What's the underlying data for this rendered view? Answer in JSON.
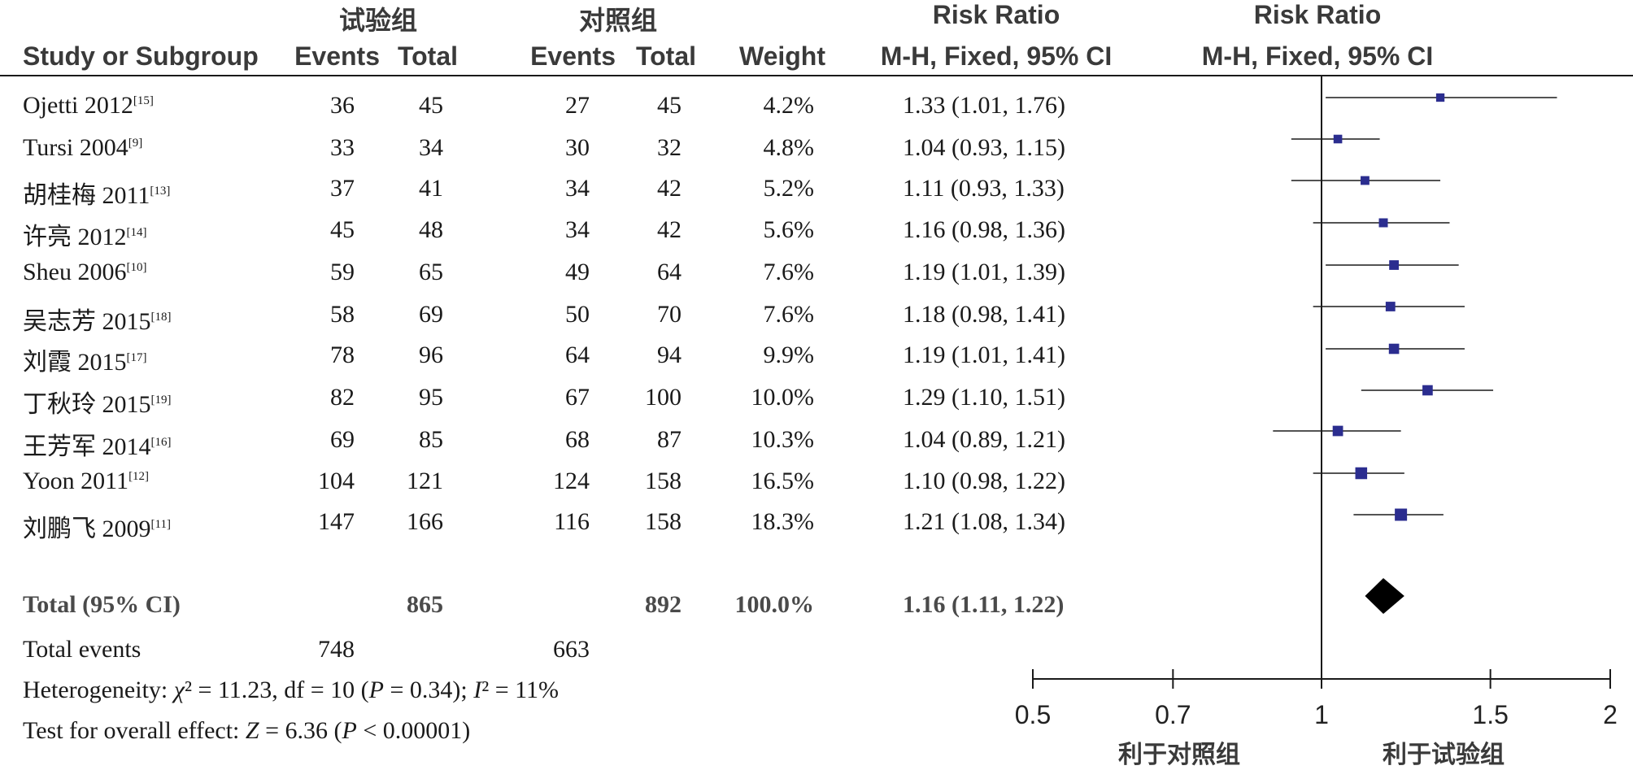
{
  "header": {
    "group_trial": "试验组",
    "group_control": "对照组",
    "study_col": "Study or Subgroup",
    "events": "Events",
    "total": "Total",
    "weight": "Weight",
    "rr_title": "Risk Ratio",
    "rr_method": "M-H, Fixed, 95% CI",
    "plot_title": "Risk Ratio",
    "plot_method": "M-H, Fixed, 95% CI"
  },
  "studies": [
    {
      "name": "Ojetti 2012",
      "ref": "[15]",
      "e1": "36",
      "t1": "45",
      "e2": "27",
      "t2": "45",
      "weight": "4.2%",
      "ci": "1.33 (1.01, 1.76)"
    },
    {
      "name": "Tursi 2004",
      "ref": "[9]",
      "e1": "33",
      "t1": "34",
      "e2": "30",
      "t2": "32",
      "weight": "4.8%",
      "ci": "1.04 (0.93, 1.15)"
    },
    {
      "name": "胡桂梅 2011",
      "ref": "[13]",
      "e1": "37",
      "t1": "41",
      "e2": "34",
      "t2": "42",
      "weight": "5.2%",
      "ci": "1.11 (0.93, 1.33)"
    },
    {
      "name": "许亮 2012",
      "ref": "[14]",
      "e1": "45",
      "t1": "48",
      "e2": "34",
      "t2": "42",
      "weight": "5.6%",
      "ci": "1.16 (0.98, 1.36)"
    },
    {
      "name": "Sheu 2006",
      "ref": "[10]",
      "e1": "59",
      "t1": "65",
      "e2": "49",
      "t2": "64",
      "weight": "7.6%",
      "ci": "1.19 (1.01, 1.39)"
    },
    {
      "name": "吴志芳 2015",
      "ref": "[18]",
      "e1": "58",
      "t1": "69",
      "e2": "50",
      "t2": "70",
      "weight": "7.6%",
      "ci": "1.18 (0.98, 1.41)"
    },
    {
      "name": "刘霞 2015",
      "ref": "[17]",
      "e1": "78",
      "t1": "96",
      "e2": "64",
      "t2": "94",
      "weight": "9.9%",
      "ci": "1.19 (1.01, 1.41)"
    },
    {
      "name": "丁秋玲 2015",
      "ref": "[19]",
      "e1": "82",
      "t1": "95",
      "e2": "67",
      "t2": "100",
      "weight": "10.0%",
      "ci": "1.29 (1.10, 1.51)"
    },
    {
      "name": "王芳军 2014",
      "ref": "[16]",
      "e1": "69",
      "t1": "85",
      "e2": "68",
      "t2": "87",
      "weight": "10.3%",
      "ci": "1.04 (0.89, 1.21)"
    },
    {
      "name": "Yoon 2011",
      "ref": "[12]",
      "e1": "104",
      "t1": "121",
      "e2": "124",
      "t2": "158",
      "weight": "16.5%",
      "ci": "1.10 (0.98, 1.22)"
    },
    {
      "name": "刘鹏飞 2009",
      "ref": "[11]",
      "e1": "147",
      "t1": "166",
      "e2": "116",
      "t2": "158",
      "weight": "18.3%",
      "ci": "1.21 (1.08, 1.34)"
    }
  ],
  "total": {
    "label": "Total (95% CI)",
    "t1": "865",
    "t2": "892",
    "weight": "100.0%",
    "ci": "1.16 (1.11, 1.22)"
  },
  "total_events": {
    "label": "Total events",
    "e1": "748",
    "e2": "663"
  },
  "heterogeneity": {
    "prefix": "Heterogeneity: ",
    "chi": "χ",
    "chi_rest": "² = 11.23, df = 10 (",
    "p": "P",
    "p_rest": " = 0.34); ",
    "i": "I",
    "i_rest": "² = 11%"
  },
  "overall": {
    "prefix": "Test for overall effect: ",
    "z": "Z",
    "z_rest": " = 6.36 (",
    "p": "P",
    "p_rest": " < 0.00001)"
  },
  "axis": {
    "favours_control": "利于对照组",
    "favours_trial": "利于试验组"
  },
  "colors": {
    "marker": "#2b2d8f",
    "line": "#1a1a1a",
    "diamond": "#000000"
  },
  "chart_data": {
    "type": "forest",
    "scale": "log",
    "xlim": [
      0.5,
      2
    ],
    "ticks": [
      0.5,
      0.7,
      1,
      1.5,
      2
    ],
    "tick_labels": [
      "0.5",
      "0.7",
      "1",
      "1.5",
      "2"
    ],
    "reference_line": 1,
    "points": [
      {
        "rr": 1.33,
        "lo": 1.01,
        "hi": 1.76,
        "weight": 4.2
      },
      {
        "rr": 1.04,
        "lo": 0.93,
        "hi": 1.15,
        "weight": 4.8
      },
      {
        "rr": 1.11,
        "lo": 0.93,
        "hi": 1.33,
        "weight": 5.2
      },
      {
        "rr": 1.16,
        "lo": 0.98,
        "hi": 1.36,
        "weight": 5.6
      },
      {
        "rr": 1.19,
        "lo": 1.01,
        "hi": 1.39,
        "weight": 7.6
      },
      {
        "rr": 1.18,
        "lo": 0.98,
        "hi": 1.41,
        "weight": 7.6
      },
      {
        "rr": 1.19,
        "lo": 1.01,
        "hi": 1.41,
        "weight": 9.9
      },
      {
        "rr": 1.29,
        "lo": 1.1,
        "hi": 1.51,
        "weight": 10.0
      },
      {
        "rr": 1.04,
        "lo": 0.89,
        "hi": 1.21,
        "weight": 10.3
      },
      {
        "rr": 1.1,
        "lo": 0.98,
        "hi": 1.22,
        "weight": 16.5
      },
      {
        "rr": 1.21,
        "lo": 1.08,
        "hi": 1.34,
        "weight": 18.3
      }
    ],
    "pooled": {
      "rr": 1.16,
      "lo": 1.11,
      "hi": 1.22
    }
  }
}
